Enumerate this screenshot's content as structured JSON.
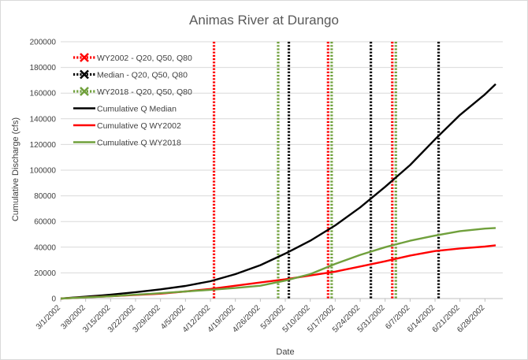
{
  "chart_data": {
    "type": "line",
    "title": "Animas River at Durango",
    "xlabel": "Date",
    "ylabel": "Cumulative Discharge (cfs)",
    "x_range": [
      "3/1/2002",
      "7/3/2002"
    ],
    "ylim": [
      0,
      200000
    ],
    "y_ticks": [
      0,
      20000,
      40000,
      60000,
      80000,
      100000,
      120000,
      140000,
      160000,
      180000,
      200000
    ],
    "x_ticks": [
      "3/1/2002",
      "3/8/2002",
      "3/15/2002",
      "3/22/2002",
      "3/29/2002",
      "4/5/2002",
      "4/12/2002",
      "4/19/2002",
      "4/26/2002",
      "5/3/2002",
      "5/10/2002",
      "5/17/2002",
      "5/24/2002",
      "5/31/2002",
      "6/7/2002",
      "6/14/2002",
      "6/21/2002",
      "6/28/2002"
    ],
    "grid": "horizontal",
    "legend_position": "top-left",
    "series": [
      {
        "name": "Cumulative Q Median",
        "color": "#000000",
        "x": [
          "3/1/2002",
          "3/8/2002",
          "3/15/2002",
          "3/22/2002",
          "3/29/2002",
          "4/5/2002",
          "4/12/2002",
          "4/19/2002",
          "4/26/2002",
          "5/3/2002",
          "5/10/2002",
          "5/17/2002",
          "5/24/2002",
          "5/31/2002",
          "6/7/2002",
          "6/14/2002",
          "6/21/2002",
          "6/28/2002",
          "7/1/2002"
        ],
        "values": [
          0,
          1500,
          3000,
          5000,
          7200,
          9800,
          13500,
          19000,
          26000,
          35000,
          45000,
          57000,
          71000,
          87000,
          104000,
          124000,
          143000,
          159000,
          167000
        ]
      },
      {
        "name": "Cumulative Q WY2002",
        "color": "#ff0000",
        "x": [
          "3/1/2002",
          "3/8/2002",
          "3/15/2002",
          "3/22/2002",
          "3/29/2002",
          "4/5/2002",
          "4/12/2002",
          "4/19/2002",
          "4/26/2002",
          "5/3/2002",
          "5/10/2002",
          "5/17/2002",
          "5/24/2002",
          "5/31/2002",
          "6/7/2002",
          "6/14/2002",
          "6/21/2002",
          "6/28/2002",
          "7/1/2002"
        ],
        "values": [
          0,
          1000,
          1800,
          2800,
          3800,
          5500,
          7500,
          10000,
          12500,
          15000,
          18000,
          21000,
          25000,
          29000,
          33500,
          37000,
          39000,
          40500,
          41500
        ]
      },
      {
        "name": "Cumulative Q WY2018",
        "color": "#70a03c",
        "x": [
          "3/1/2002",
          "3/8/2002",
          "3/15/2002",
          "3/22/2002",
          "3/29/2002",
          "4/5/2002",
          "4/12/2002",
          "4/19/2002",
          "4/26/2002",
          "5/3/2002",
          "5/10/2002",
          "5/17/2002",
          "5/24/2002",
          "5/31/2002",
          "6/7/2002",
          "6/14/2002",
          "6/21/2002",
          "6/28/2002",
          "7/1/2002"
        ],
        "values": [
          0,
          900,
          1800,
          3000,
          4200,
          5500,
          6800,
          8200,
          10000,
          14000,
          19000,
          27000,
          34000,
          40000,
          45000,
          49000,
          52500,
          54500,
          55000
        ]
      }
    ],
    "reference_lines": [
      {
        "name": "WY2002 - Q20, Q50, Q80",
        "color": "#ff0000",
        "dates": [
          "4/13/2002",
          "5/15/2002",
          "6/2/2002"
        ]
      },
      {
        "name": "Median - Q20, Q50, Q80",
        "color": "#000000",
        "dates": [
          "5/4/2002",
          "5/27/2002",
          "6/15/2002"
        ]
      },
      {
        "name": "WY2018 - Q20, Q50, Q80",
        "color": "#70a03c",
        "dates": [
          "5/1/2002",
          "5/16/2002",
          "6/3/2002"
        ]
      }
    ],
    "legend": [
      {
        "label": "WY2002 - Q20, Q50, Q80",
        "color": "#ff0000",
        "style": "dotted"
      },
      {
        "label": "Median - Q20, Q50, Q80",
        "color": "#000000",
        "style": "dotted"
      },
      {
        "label": "WY2018 - Q20, Q50, Q80",
        "color": "#70a03c",
        "style": "dotted"
      },
      {
        "label": "Cumulative Q Median",
        "color": "#000000",
        "style": "solid"
      },
      {
        "label": "Cumulative Q WY2002",
        "color": "#ff0000",
        "style": "solid"
      },
      {
        "label": "Cumulative Q WY2018",
        "color": "#70a03c",
        "style": "solid"
      }
    ]
  }
}
